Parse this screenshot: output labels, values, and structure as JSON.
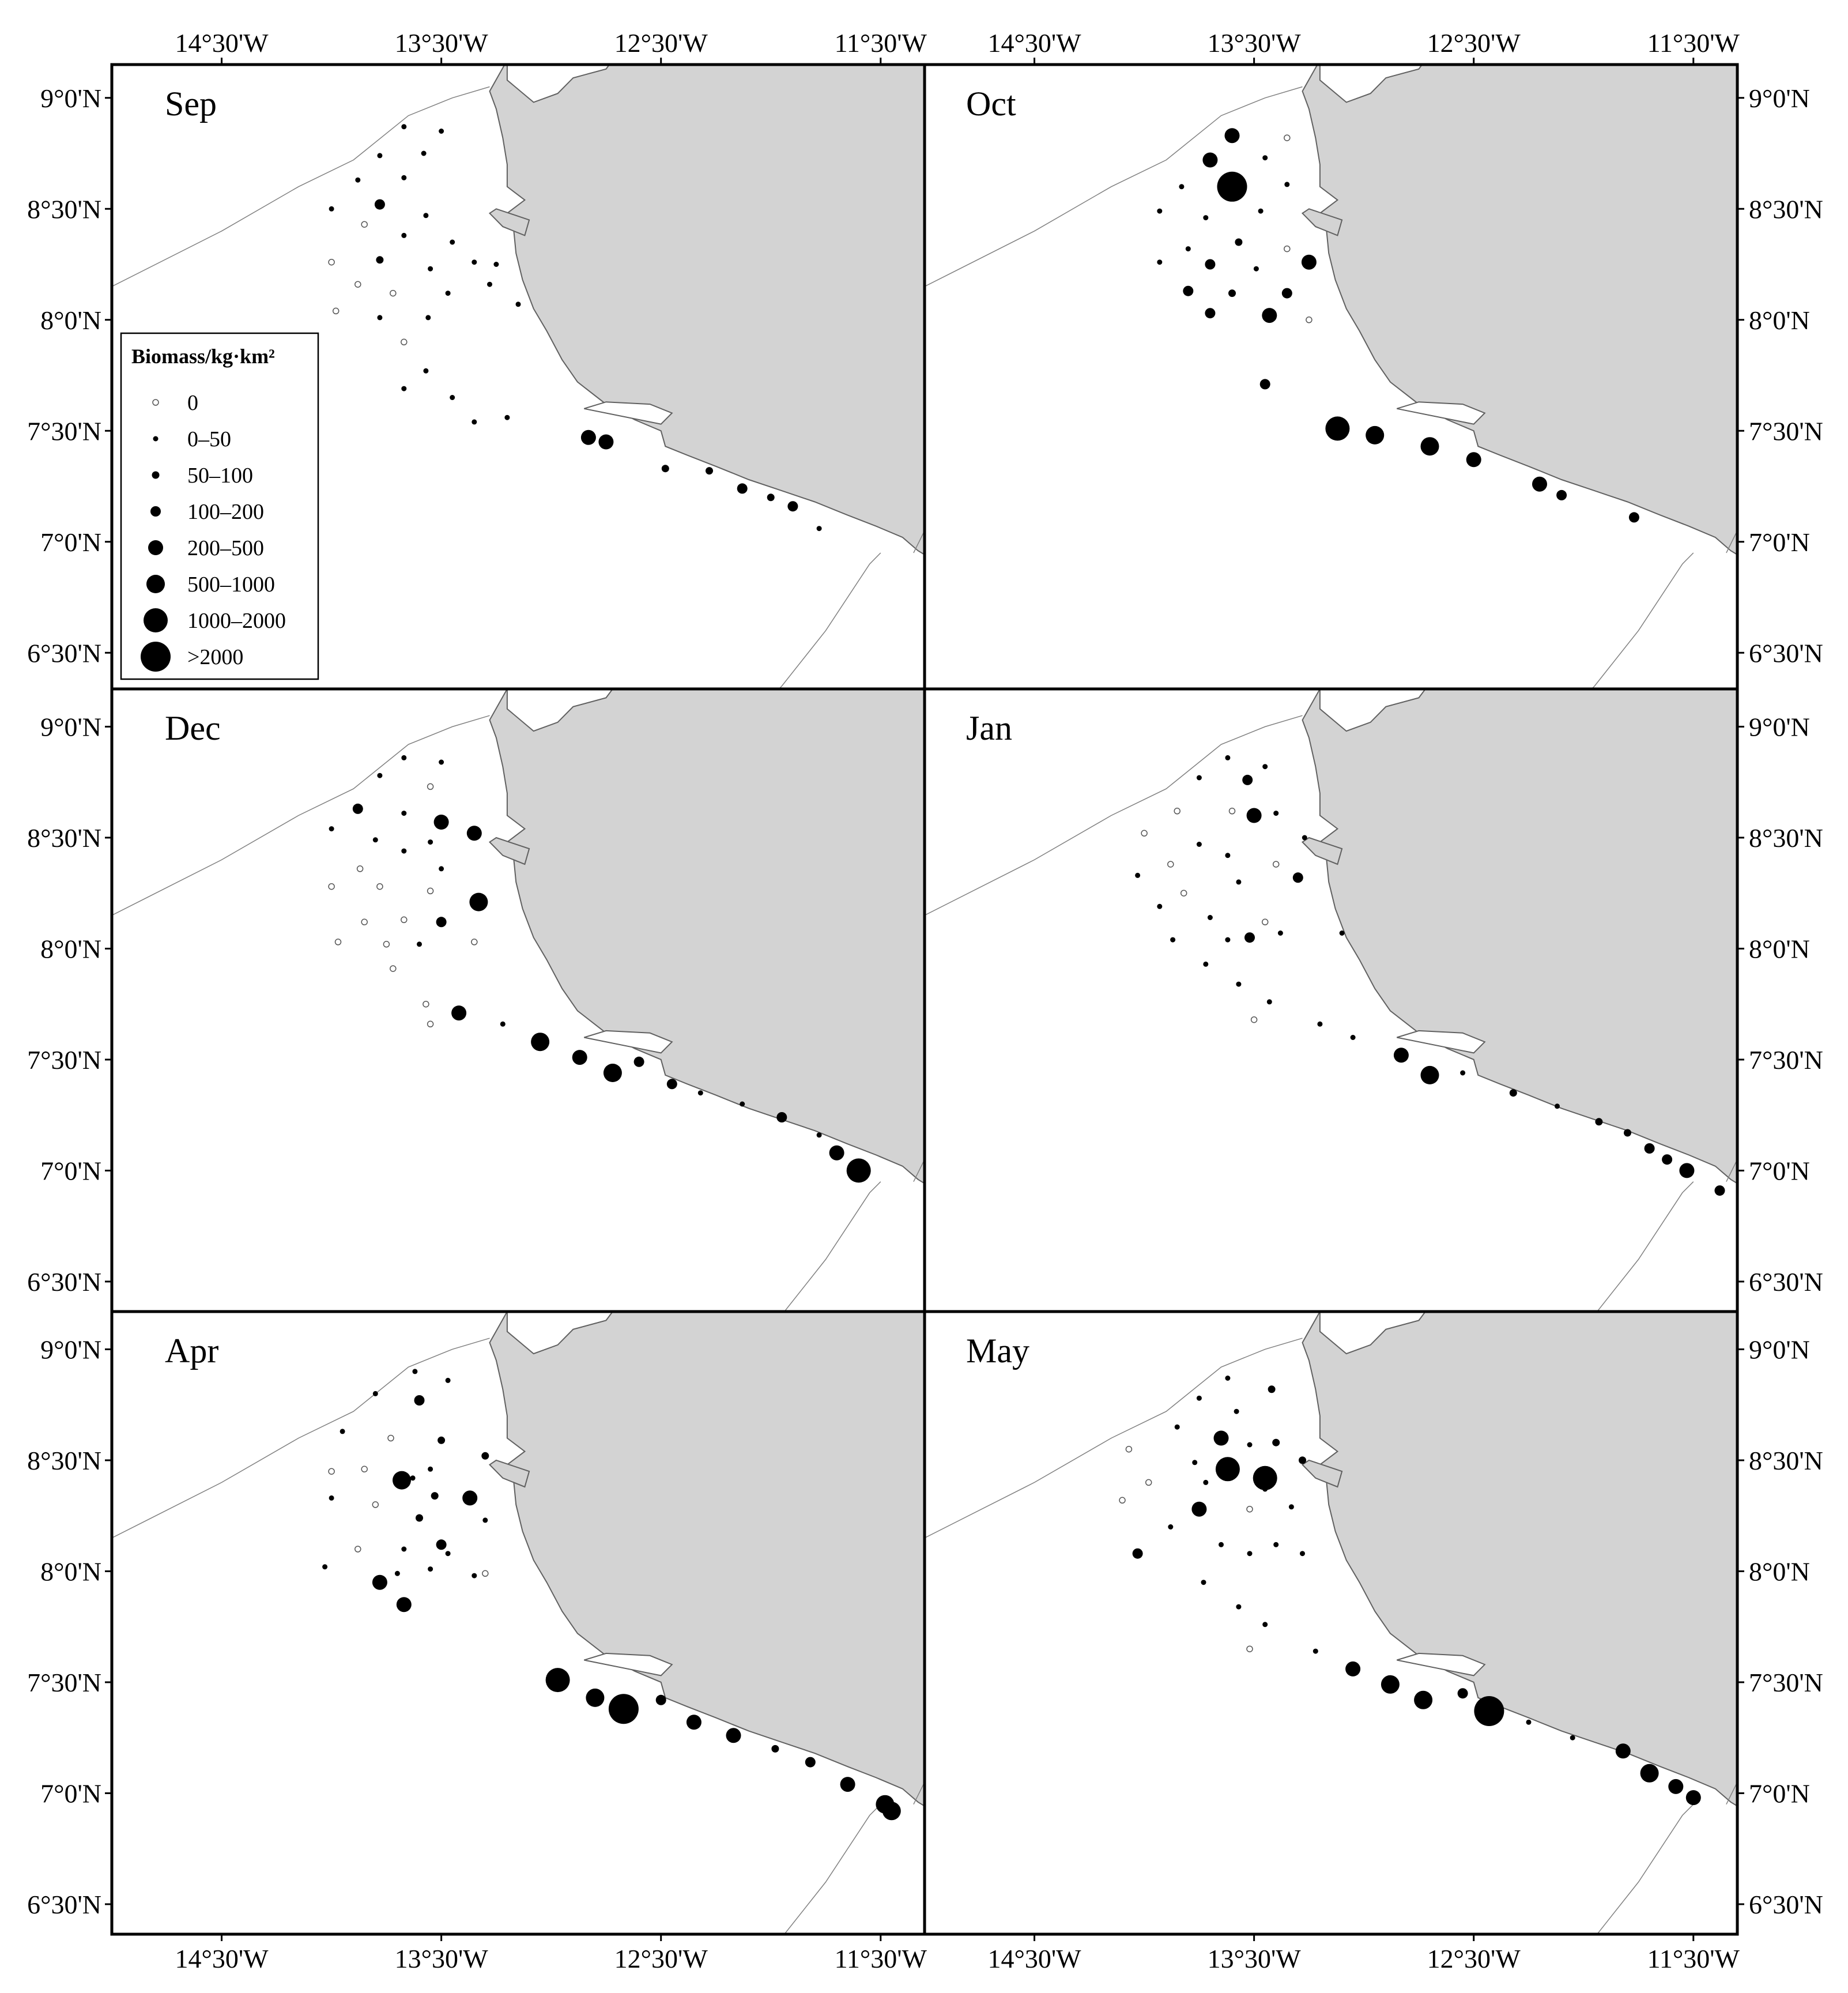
{
  "figure": {
    "x_axis_labels": [
      "14°30'W",
      "13°30'W",
      "12°30'W",
      "11°30'W"
    ],
    "y_axis_labels": [
      "9°0'N",
      "8°30'N",
      "8°0'N",
      "7°30'N",
      "7°0'N",
      "6°30'N"
    ],
    "colors": {
      "land": "#d3d3d3",
      "coastline": "#606060",
      "marker": "#000000",
      "frame": "#000000",
      "boundary_line": "#808080"
    }
  },
  "legend": {
    "title": "Biomass/kg·km²",
    "classes": [
      "0",
      "0–50",
      "50–100",
      "100–200",
      "200–500",
      "500–1000",
      "1000–2000",
      ">2000"
    ]
  },
  "panels": [
    {
      "month": "Sep",
      "stations": [
        [
          -13.67,
          8.87,
          1
        ],
        [
          -13.5,
          8.85,
          1
        ],
        [
          -13.78,
          8.74,
          1
        ],
        [
          -13.58,
          8.75,
          1
        ],
        [
          -13.88,
          8.63,
          1
        ],
        [
          -13.67,
          8.64,
          1
        ],
        [
          -14.0,
          8.5,
          1
        ],
        [
          -13.78,
          8.52,
          3
        ],
        [
          -13.57,
          8.47,
          1
        ],
        [
          -13.85,
          8.43,
          0
        ],
        [
          -13.67,
          8.38,
          1
        ],
        [
          -13.45,
          8.35,
          1
        ],
        [
          -14.0,
          8.26,
          0
        ],
        [
          -13.78,
          8.27,
          2
        ],
        [
          -13.55,
          8.23,
          1
        ],
        [
          -13.35,
          8.26,
          1
        ],
        [
          -13.25,
          8.25,
          1
        ],
        [
          -13.88,
          8.16,
          0
        ],
        [
          -13.72,
          8.12,
          0
        ],
        [
          -13.47,
          8.12,
          1
        ],
        [
          -13.28,
          8.16,
          1
        ],
        [
          -13.98,
          8.04,
          0
        ],
        [
          -13.78,
          8.01,
          1
        ],
        [
          -13.56,
          8.01,
          1
        ],
        [
          -13.15,
          8.07,
          1
        ],
        [
          -13.67,
          7.9,
          0
        ],
        [
          -13.57,
          7.77,
          1
        ],
        [
          -13.67,
          7.69,
          1
        ],
        [
          -13.45,
          7.65,
          1
        ],
        [
          -13.35,
          7.54,
          1
        ],
        [
          -13.2,
          7.56,
          1
        ],
        [
          -12.83,
          7.47,
          4
        ],
        [
          -12.75,
          7.45,
          4
        ],
        [
          -12.48,
          7.33,
          2
        ],
        [
          -12.28,
          7.32,
          2
        ],
        [
          -12.13,
          7.24,
          3
        ],
        [
          -12.0,
          7.2,
          2
        ],
        [
          -11.9,
          7.16,
          3
        ],
        [
          -11.78,
          7.06,
          1
        ]
      ]
    },
    {
      "month": "Oct",
      "stations": [
        [
          -13.6,
          8.83,
          4
        ],
        [
          -13.35,
          8.82,
          0
        ],
        [
          -13.7,
          8.72,
          4
        ],
        [
          -13.45,
          8.73,
          1
        ],
        [
          -13.83,
          8.6,
          1
        ],
        [
          -13.35,
          8.61,
          1
        ],
        [
          -13.6,
          8.6,
          7
        ],
        [
          -13.72,
          8.46,
          1
        ],
        [
          -13.47,
          8.49,
          1
        ],
        [
          -13.93,
          8.49,
          1
        ],
        [
          -13.57,
          8.35,
          2
        ],
        [
          -13.8,
          8.32,
          1
        ],
        [
          -13.35,
          8.32,
          0
        ],
        [
          -13.25,
          8.26,
          4
        ],
        [
          -13.7,
          8.25,
          3
        ],
        [
          -13.49,
          8.23,
          1
        ],
        [
          -13.93,
          8.26,
          1
        ],
        [
          -13.8,
          8.13,
          3
        ],
        [
          -13.6,
          8.12,
          2
        ],
        [
          -13.35,
          8.12,
          3
        ],
        [
          -13.7,
          8.03,
          3
        ],
        [
          -13.43,
          8.02,
          4
        ],
        [
          -13.25,
          8.0,
          0
        ],
        [
          -13.45,
          7.71,
          3
        ],
        [
          -13.12,
          7.51,
          6
        ],
        [
          -12.95,
          7.48,
          5
        ],
        [
          -12.7,
          7.43,
          5
        ],
        [
          -12.5,
          7.37,
          4
        ],
        [
          -12.2,
          7.26,
          4
        ],
        [
          -12.1,
          7.21,
          3
        ],
        [
          -11.77,
          7.11,
          3
        ]
      ]
    },
    {
      "month": "Dec",
      "stations": [
        [
          -13.67,
          8.86,
          1
        ],
        [
          -13.5,
          8.84,
          1
        ],
        [
          -13.78,
          8.78,
          1
        ],
        [
          -13.55,
          8.73,
          0
        ],
        [
          -13.88,
          8.63,
          3
        ],
        [
          -13.67,
          8.61,
          1
        ],
        [
          -13.5,
          8.57,
          4
        ],
        [
          -13.35,
          8.52,
          4
        ],
        [
          -14.0,
          8.54,
          1
        ],
        [
          -13.8,
          8.49,
          1
        ],
        [
          -13.67,
          8.44,
          1
        ],
        [
          -13.55,
          8.48,
          1
        ],
        [
          -13.87,
          8.36,
          0
        ],
        [
          -13.5,
          8.36,
          1
        ],
        [
          -14.0,
          8.28,
          0
        ],
        [
          -13.78,
          8.28,
          0
        ],
        [
          -13.55,
          8.26,
          0
        ],
        [
          -13.33,
          8.21,
          5
        ],
        [
          -13.85,
          8.12,
          0
        ],
        [
          -13.67,
          8.13,
          0
        ],
        [
          -13.5,
          8.12,
          3
        ],
        [
          -13.97,
          8.03,
          0
        ],
        [
          -13.75,
          8.02,
          0
        ],
        [
          -13.6,
          8.02,
          1
        ],
        [
          -13.35,
          8.03,
          0
        ],
        [
          -13.72,
          7.91,
          0
        ],
        [
          -13.57,
          7.75,
          0
        ],
        [
          -13.42,
          7.71,
          4
        ],
        [
          -13.55,
          7.66,
          0
        ],
        [
          -13.22,
          7.66,
          1
        ],
        [
          -13.05,
          7.58,
          5
        ],
        [
          -12.87,
          7.51,
          4
        ],
        [
          -12.72,
          7.44,
          5
        ],
        [
          -12.6,
          7.49,
          3
        ],
        [
          -12.45,
          7.39,
          3
        ],
        [
          -12.32,
          7.35,
          1
        ],
        [
          -12.13,
          7.3,
          1
        ],
        [
          -11.95,
          7.24,
          3
        ],
        [
          -11.78,
          7.16,
          1
        ],
        [
          -11.7,
          7.08,
          4
        ],
        [
          -11.6,
          7.0,
          6
        ]
      ]
    },
    {
      "month": "Jan",
      "stations": [
        [
          -13.62,
          8.86,
          1
        ],
        [
          -13.45,
          8.82,
          1
        ],
        [
          -13.75,
          8.77,
          1
        ],
        [
          -13.53,
          8.76,
          3
        ],
        [
          -13.85,
          8.62,
          0
        ],
        [
          -13.6,
          8.62,
          0
        ],
        [
          -13.5,
          8.6,
          4
        ],
        [
          -13.4,
          8.61,
          1
        ],
        [
          -14.0,
          8.52,
          0
        ],
        [
          -13.75,
          8.47,
          1
        ],
        [
          -13.27,
          8.5,
          1
        ],
        [
          -13.62,
          8.42,
          1
        ],
        [
          -13.88,
          8.38,
          0
        ],
        [
          -13.4,
          8.38,
          0
        ],
        [
          -14.03,
          8.33,
          1
        ],
        [
          -13.57,
          8.3,
          1
        ],
        [
          -13.3,
          8.32,
          3
        ],
        [
          -13.82,
          8.25,
          0
        ],
        [
          -13.93,
          8.19,
          1
        ],
        [
          -13.7,
          8.14,
          1
        ],
        [
          -13.45,
          8.12,
          0
        ],
        [
          -13.52,
          8.05,
          3
        ],
        [
          -13.87,
          8.04,
          1
        ],
        [
          -13.62,
          8.04,
          1
        ],
        [
          -13.38,
          8.07,
          1
        ],
        [
          -13.1,
          8.07,
          1
        ],
        [
          -13.72,
          7.93,
          1
        ],
        [
          -13.57,
          7.84,
          1
        ],
        [
          -13.43,
          7.76,
          1
        ],
        [
          -13.5,
          7.68,
          0
        ],
        [
          -13.2,
          7.66,
          1
        ],
        [
          -13.05,
          7.6,
          1
        ],
        [
          -12.83,
          7.52,
          4
        ],
        [
          -12.7,
          7.43,
          5
        ],
        [
          -12.55,
          7.44,
          1
        ],
        [
          -12.32,
          7.35,
          2
        ],
        [
          -12.12,
          7.29,
          1
        ],
        [
          -11.93,
          7.22,
          2
        ],
        [
          -11.8,
          7.17,
          2
        ],
        [
          -11.7,
          7.1,
          3
        ],
        [
          -11.62,
          7.05,
          3
        ],
        [
          -11.53,
          7.0,
          4
        ],
        [
          -11.38,
          6.91,
          3
        ]
      ]
    },
    {
      "month": "Apr",
      "stations": [
        [
          -13.62,
          8.9,
          1
        ],
        [
          -13.47,
          8.86,
          1
        ],
        [
          -13.8,
          8.8,
          1
        ],
        [
          -13.6,
          8.77,
          3
        ],
        [
          -13.95,
          8.63,
          1
        ],
        [
          -13.73,
          8.6,
          0
        ],
        [
          -13.5,
          8.59,
          2
        ],
        [
          -13.3,
          8.52,
          2
        ],
        [
          -14.0,
          8.45,
          0
        ],
        [
          -13.85,
          8.46,
          0
        ],
        [
          -13.63,
          8.42,
          1
        ],
        [
          -13.55,
          8.46,
          1
        ],
        [
          -13.68,
          8.41,
          5
        ],
        [
          -13.53,
          8.34,
          2
        ],
        [
          -14.0,
          8.33,
          1
        ],
        [
          -13.8,
          8.3,
          0
        ],
        [
          -13.6,
          8.24,
          2
        ],
        [
          -13.37,
          8.33,
          4
        ],
        [
          -13.3,
          8.23,
          1
        ],
        [
          -13.88,
          8.1,
          0
        ],
        [
          -13.67,
          8.1,
          1
        ],
        [
          -13.5,
          8.12,
          3
        ],
        [
          -13.47,
          8.08,
          1
        ],
        [
          -14.03,
          8.02,
          1
        ],
        [
          -13.7,
          7.99,
          1
        ],
        [
          -13.55,
          8.01,
          1
        ],
        [
          -13.35,
          7.98,
          1
        ],
        [
          -13.3,
          7.99,
          0
        ],
        [
          -13.78,
          7.95,
          4
        ],
        [
          -13.67,
          7.85,
          4
        ],
        [
          -12.97,
          7.51,
          6
        ],
        [
          -12.8,
          7.43,
          5
        ],
        [
          -12.67,
          7.38,
          7
        ],
        [
          -12.5,
          7.42,
          3
        ],
        [
          -12.35,
          7.32,
          4
        ],
        [
          -12.17,
          7.26,
          4
        ],
        [
          -11.98,
          7.2,
          2
        ],
        [
          -11.82,
          7.14,
          3
        ],
        [
          -11.65,
          7.04,
          4
        ],
        [
          -11.48,
          6.95,
          5
        ],
        [
          -11.45,
          6.92,
          5
        ]
      ]
    },
    {
      "month": "May",
      "stations": [
        [
          -13.62,
          8.87,
          1
        ],
        [
          -13.42,
          8.82,
          2
        ],
        [
          -13.75,
          8.78,
          1
        ],
        [
          -13.58,
          8.72,
          1
        ],
        [
          -13.85,
          8.65,
          1
        ],
        [
          -13.65,
          8.6,
          4
        ],
        [
          -13.52,
          8.57,
          1
        ],
        [
          -13.4,
          8.58,
          2
        ],
        [
          -13.28,
          8.5,
          2
        ],
        [
          -14.07,
          8.55,
          0
        ],
        [
          -13.77,
          8.49,
          1
        ],
        [
          -13.62,
          8.46,
          6
        ],
        [
          -13.45,
          8.42,
          6
        ],
        [
          -13.98,
          8.4,
          0
        ],
        [
          -13.72,
          8.4,
          1
        ],
        [
          -13.45,
          8.37,
          1
        ],
        [
          -14.1,
          8.32,
          0
        ],
        [
          -13.75,
          8.28,
          4
        ],
        [
          -13.52,
          8.28,
          0
        ],
        [
          -13.33,
          8.29,
          1
        ],
        [
          -13.88,
          8.2,
          1
        ],
        [
          -13.65,
          8.12,
          1
        ],
        [
          -13.4,
          8.12,
          1
        ],
        [
          -13.52,
          8.08,
          1
        ],
        [
          -13.28,
          8.08,
          1
        ],
        [
          -14.03,
          8.08,
          3
        ],
        [
          -13.73,
          7.95,
          1
        ],
        [
          -13.57,
          7.84,
          1
        ],
        [
          -13.45,
          7.76,
          1
        ],
        [
          -13.52,
          7.65,
          0
        ],
        [
          -13.22,
          7.64,
          1
        ],
        [
          -13.05,
          7.56,
          4
        ],
        [
          -12.88,
          7.49,
          5
        ],
        [
          -12.73,
          7.42,
          5
        ],
        [
          -12.55,
          7.45,
          3
        ],
        [
          -12.43,
          7.37,
          7
        ],
        [
          -12.25,
          7.32,
          1
        ],
        [
          -12.05,
          7.25,
          1
        ],
        [
          -11.82,
          7.19,
          4
        ],
        [
          -11.7,
          7.09,
          5
        ],
        [
          -11.58,
          7.03,
          4
        ],
        [
          -11.5,
          6.98,
          4
        ]
      ]
    }
  ]
}
